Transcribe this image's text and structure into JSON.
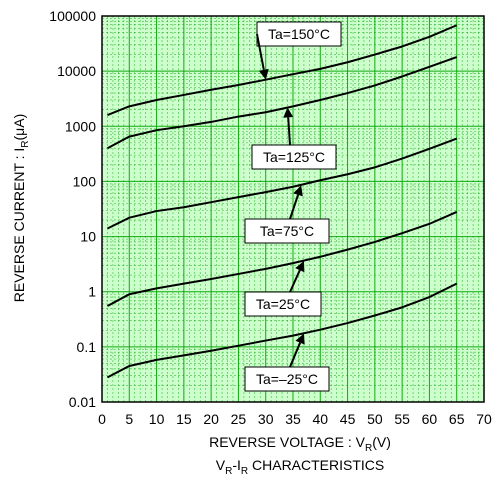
{
  "chart_data": {
    "type": "line",
    "title": "",
    "caption_main": "V",
    "caption_sub": "R",
    "caption_sep": "-I",
    "caption_sub2": "R",
    "caption_rest": " CHARACTERISTICS",
    "xlabel_main": "REVERSE VOLTAGE",
    "xlabel_colon": " : ",
    "xlabel_var": "V",
    "xlabel_sub": "R",
    "xlabel_unit": "(V)",
    "ylabel_main": "REVERSE CURRENT : I",
    "ylabel_sub": "R",
    "ylabel_unit": "(μA)",
    "xlim": [
      0,
      70
    ],
    "ylim": [
      0.01,
      100000
    ],
    "yscale": "log",
    "grid": true,
    "x_ticks": [
      "0",
      "5",
      "10",
      "15",
      "20",
      "25",
      "30",
      "35",
      "40",
      "45",
      "50",
      "55",
      "60",
      "65",
      "70"
    ],
    "y_ticks": [
      "0.01",
      "0.1",
      "1",
      "10",
      "100",
      "1000",
      "10000",
      "100000"
    ],
    "colors": {
      "grid_fill": "#ccffcc",
      "grid_line": "#00a000",
      "curve": "#000000",
      "frame": "#000000"
    },
    "series": [
      {
        "name": "Ta=150°C",
        "x": [
          1,
          5,
          10,
          15,
          20,
          25,
          30,
          35,
          40,
          45,
          50,
          55,
          60,
          65
        ],
        "y": [
          1600,
          2300,
          3000,
          3700,
          4600,
          5600,
          7000,
          8800,
          11000,
          14500,
          20000,
          28000,
          42000,
          68000
        ]
      },
      {
        "name": "Ta=125°C",
        "x": [
          1,
          5,
          10,
          15,
          20,
          25,
          30,
          35,
          40,
          45,
          50,
          55,
          60,
          65
        ],
        "y": [
          400,
          650,
          850,
          1000,
          1200,
          1500,
          1800,
          2300,
          3000,
          4000,
          5500,
          8000,
          12000,
          18000
        ]
      },
      {
        "name": "Ta=75°C",
        "x": [
          1,
          5,
          10,
          15,
          20,
          25,
          30,
          35,
          40,
          45,
          50,
          55,
          60,
          65
        ],
        "y": [
          14,
          22,
          29,
          34,
          42,
          52,
          64,
          80,
          105,
          135,
          180,
          260,
          390,
          600
        ]
      },
      {
        "name": "Ta=25°C",
        "x": [
          1,
          5,
          10,
          15,
          20,
          25,
          30,
          35,
          40,
          45,
          50,
          55,
          60,
          65
        ],
        "y": [
          0.55,
          0.9,
          1.15,
          1.4,
          1.7,
          2.1,
          2.6,
          3.3,
          4.3,
          5.8,
          8,
          11.5,
          17,
          28
        ]
      },
      {
        "name": "Ta=-25°C",
        "x": [
          1,
          5,
          10,
          15,
          20,
          25,
          30,
          35,
          40,
          45,
          50,
          55,
          60,
          65
        ],
        "y": [
          0.028,
          0.045,
          0.058,
          0.07,
          0.085,
          0.105,
          0.13,
          0.16,
          0.205,
          0.27,
          0.37,
          0.52,
          0.8,
          1.4
        ]
      }
    ],
    "annotations": [
      {
        "label": "Ta=150°C",
        "point_x": 30,
        "point_y": 7000
      },
      {
        "label": "Ta=125°C",
        "point_x": 34,
        "point_y": 2200
      },
      {
        "label": "Ta=75°C",
        "point_x": 36.5,
        "point_y": 85
      },
      {
        "label": "Ta=25°C",
        "point_x": 37,
        "point_y": 3.6
      },
      {
        "label": "Ta=–25°C",
        "point_x": 37,
        "point_y": 0.175
      }
    ]
  }
}
